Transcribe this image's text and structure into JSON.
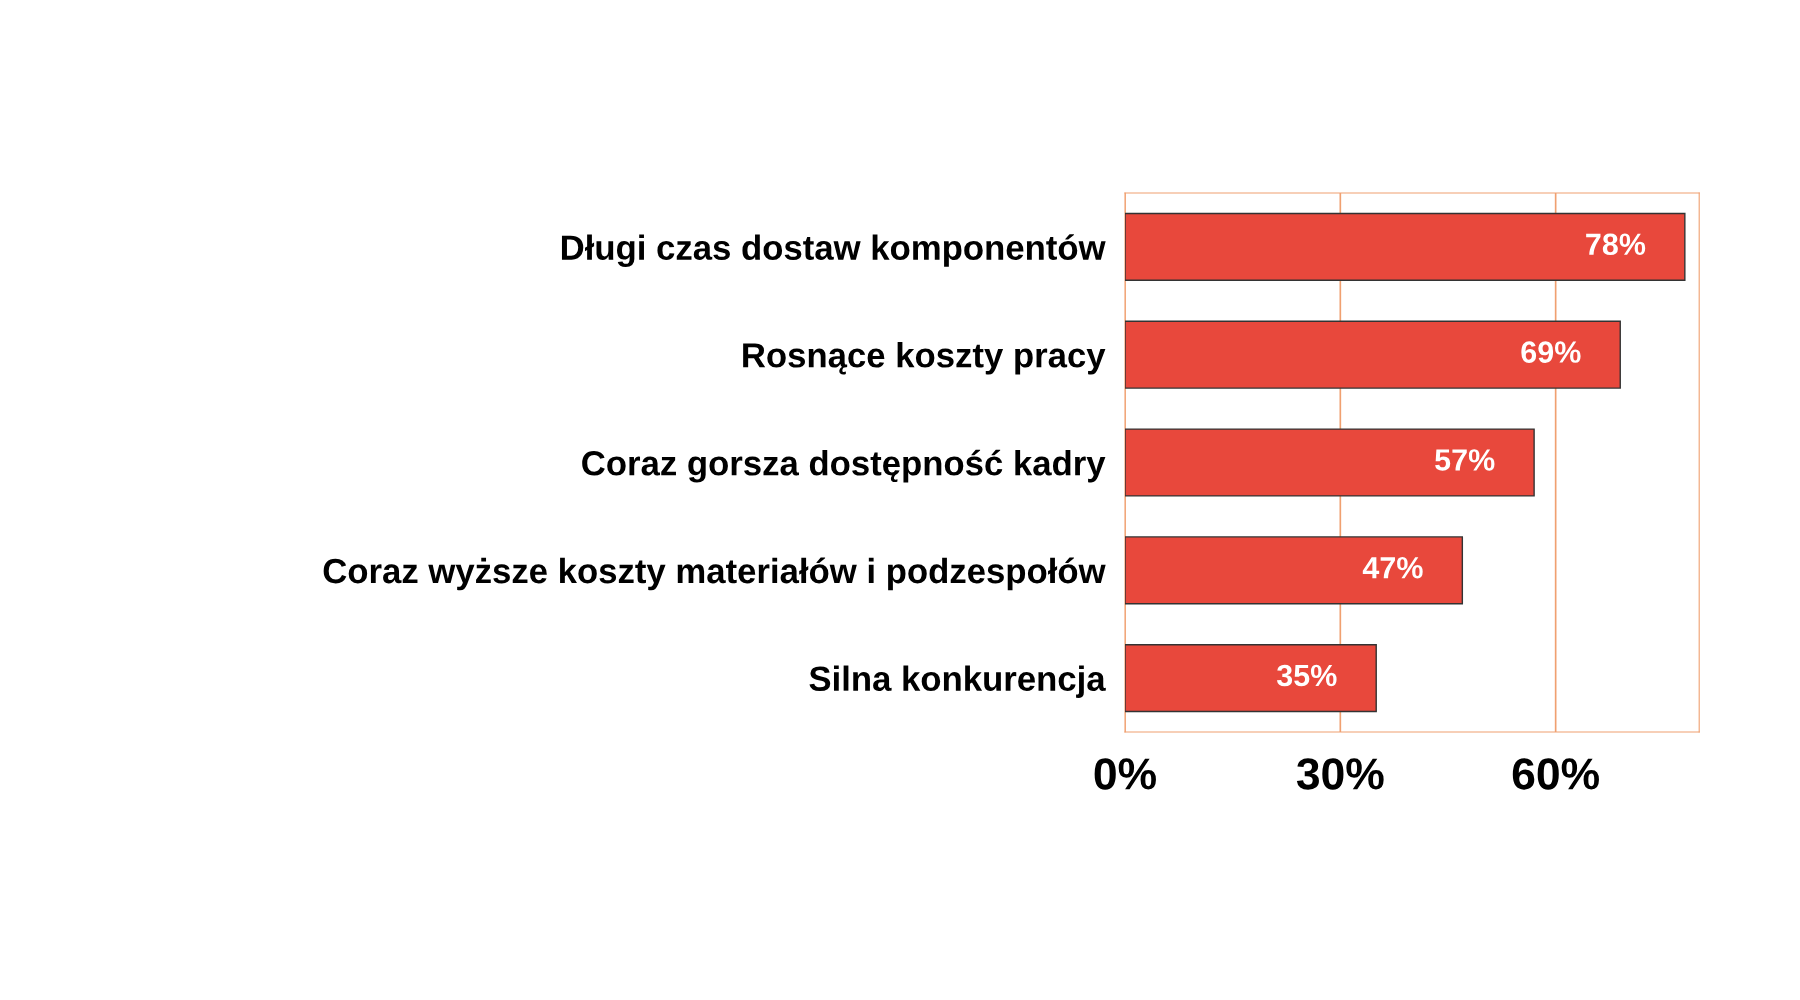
{
  "chart_data": {
    "type": "bar",
    "orientation": "horizontal",
    "categories": [
      "Długi czas dostaw komponentów",
      "Rosnące koszty pracy",
      "Coraz gorsza dostępność kadry",
      "Coraz wyższe koszty materiałów i podzespołów",
      "Silna konkurencja"
    ],
    "values": [
      78,
      69,
      57,
      47,
      35
    ],
    "color": "#e8483c",
    "value_labels": [
      "78%",
      "69%",
      "57%",
      "47%",
      "35%"
    ],
    "xlim": [
      0,
      80
    ],
    "xticks": [
      {
        "value": 0,
        "label": "0%"
      },
      {
        "value": 30,
        "label": "30%"
      },
      {
        "value": 60,
        "label": "60%"
      }
    ],
    "grid": "x",
    "legend": false
  }
}
